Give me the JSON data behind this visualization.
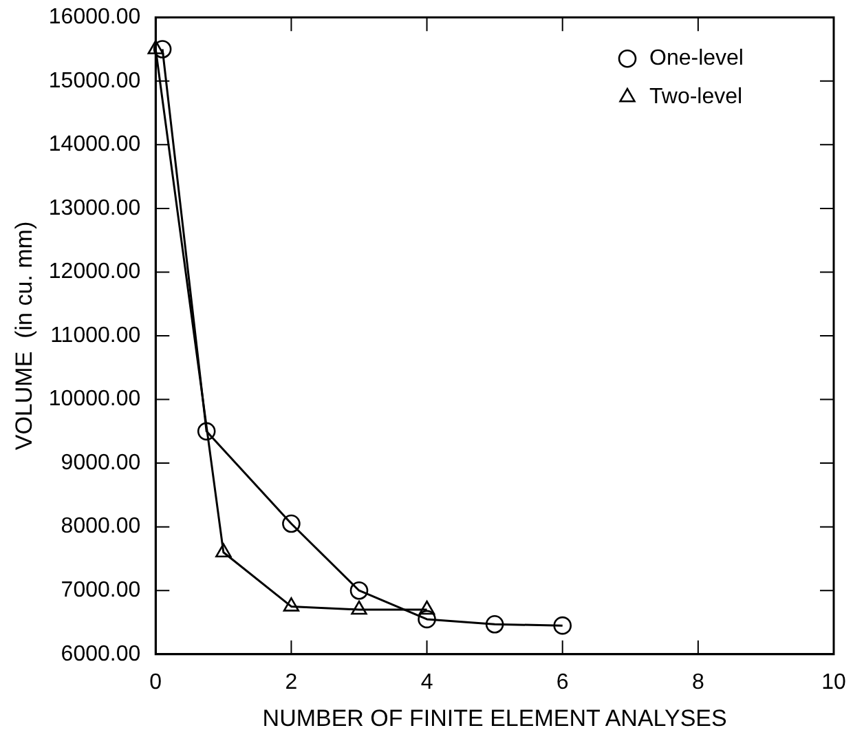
{
  "chart_data": {
    "type": "line",
    "xlabel": "NUMBER OF FINITE ELEMENT ANALYSES",
    "ylabel": "VOLUME  (in cu. mm)",
    "series": [
      {
        "name": "One-level",
        "color": "#000000",
        "marker": "circle",
        "x": [
          0.1,
          0.75,
          2,
          3,
          4,
          5,
          6
        ],
        "values": [
          15500,
          9500,
          8050,
          7000,
          6550,
          6470,
          6450
        ]
      },
      {
        "name": "Two-level",
        "color": "#000000",
        "marker": "triangle",
        "x": [
          0,
          1,
          2,
          3,
          4
        ],
        "values": [
          15500,
          7600,
          6750,
          6700,
          6700
        ]
      }
    ],
    "xlim": [
      0,
      10
    ],
    "xticks": [
      0,
      2,
      4,
      6,
      8,
      10
    ],
    "ylim": [
      6000,
      16000
    ],
    "yticks": [
      {
        "value": 6000,
        "label": "6000.00"
      },
      {
        "value": 7000,
        "label": "7000.00"
      },
      {
        "value": 8000,
        "label": "8000.00"
      },
      {
        "value": 9000,
        "label": "9000.00"
      },
      {
        "value": 10000,
        "label": "10000.00"
      },
      {
        "value": 11000,
        "label": "11000.00"
      },
      {
        "value": 12000,
        "label": "12000.00"
      },
      {
        "value": 13000,
        "label": "13000.00"
      },
      {
        "value": 14000,
        "label": "14000.00"
      },
      {
        "value": 15000,
        "label": "15000.00"
      },
      {
        "value": 16000,
        "label": "16000.00"
      }
    ],
    "grid": false,
    "legend": "top right",
    "line_style": "solid"
  }
}
